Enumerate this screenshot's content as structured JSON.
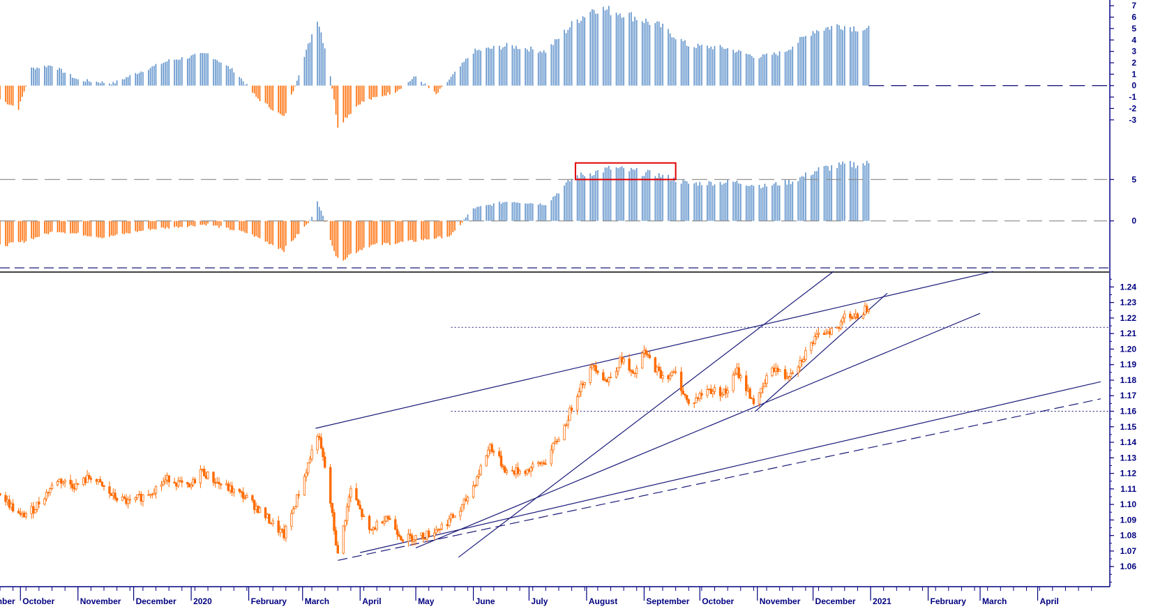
{
  "colors": {
    "price": "#ff6a00",
    "positive_bar": "#5b8fc9",
    "negative_bar": "#ff6a00",
    "trendline": "#1a1a7a",
    "axis": "#000080",
    "highlight_box": "#e00000",
    "reference": "#1a1a7a"
  },
  "chart_data": [
    {
      "type": "bar",
      "panel": "top-oscillator",
      "y_ticks": [
        "7",
        "6",
        "5",
        "4",
        "3",
        "2",
        "1",
        "0",
        "-1",
        "-2",
        "-3"
      ],
      "ylim": [
        -3.5,
        7.5
      ],
      "zero_line": 0,
      "trend_profile": [
        [
          "2019-09-20",
          -1.2
        ],
        [
          "2019-09-30",
          -2.0
        ],
        [
          "2019-10-07",
          1.5
        ],
        [
          "2019-10-18",
          1.8
        ],
        [
          "2019-11-01",
          0.5
        ],
        [
          "2019-11-20",
          0.2
        ],
        [
          "2019-12-01",
          1.0
        ],
        [
          "2019-12-20",
          2.2
        ],
        [
          "2020-01-10",
          2.8
        ],
        [
          "2020-01-25",
          1.2
        ],
        [
          "2020-02-05",
          -1.0
        ],
        [
          "2020-02-20",
          -2.8
        ],
        [
          "2020-03-01",
          2.0
        ],
        [
          "2020-03-09",
          6.0
        ],
        [
          "2020-03-15",
          2.0
        ],
        [
          "2020-03-20",
          -3.5
        ],
        [
          "2020-04-01",
          -1.5
        ],
        [
          "2020-04-20",
          -0.5
        ],
        [
          "2020-05-01",
          0.8
        ],
        [
          "2020-05-12",
          -0.8
        ],
        [
          "2020-06-01",
          3.0
        ],
        [
          "2020-06-20",
          3.5
        ],
        [
          "2020-07-10",
          3.0
        ],
        [
          "2020-07-25",
          5.5
        ],
        [
          "2020-08-05",
          6.8
        ],
        [
          "2020-08-20",
          6.4
        ],
        [
          "2020-09-10",
          5.2
        ],
        [
          "2020-09-25",
          3.5
        ],
        [
          "2020-10-15",
          3.3
        ],
        [
          "2020-11-01",
          2.5
        ],
        [
          "2020-11-15",
          2.9
        ],
        [
          "2020-12-01",
          4.8
        ],
        [
          "2020-12-15",
          5.3
        ],
        [
          "2020-12-31",
          4.9
        ]
      ]
    },
    {
      "type": "bar",
      "panel": "middle-oscillator",
      "y_ticks": [
        "5",
        "0"
      ],
      "ylim": [
        -5,
        10
      ],
      "reference_lines": [
        5,
        0
      ],
      "highlight_box": {
        "x_start": "2020-07-26",
        "x_end": "2020-09-18",
        "y_low": 5,
        "y_high": 7
      },
      "trend_profile": [
        [
          "2019-09-20",
          -3.0
        ],
        [
          "2019-10-01",
          -2.6
        ],
        [
          "2019-10-20",
          -1.2
        ],
        [
          "2019-11-15",
          -2.0
        ],
        [
          "2019-12-10",
          -1.0
        ],
        [
          "2020-01-10",
          -0.4
        ],
        [
          "2020-02-01",
          -1.5
        ],
        [
          "2020-02-20",
          -3.5
        ],
        [
          "2020-03-05",
          0.0
        ],
        [
          "2020-03-09",
          2.5
        ],
        [
          "2020-03-20",
          -4.8
        ],
        [
          "2020-04-05",
          -3.0
        ],
        [
          "2020-05-01",
          -2.4
        ],
        [
          "2020-05-20",
          -1.8
        ],
        [
          "2020-06-01",
          1.5
        ],
        [
          "2020-06-20",
          2.4
        ],
        [
          "2020-07-10",
          2.0
        ],
        [
          "2020-07-25",
          5.3
        ],
        [
          "2020-08-15",
          6.4
        ],
        [
          "2020-09-10",
          5.5
        ],
        [
          "2020-09-25",
          4.5
        ],
        [
          "2020-10-20",
          4.7
        ],
        [
          "2020-11-05",
          4.2
        ],
        [
          "2020-11-20",
          4.8
        ],
        [
          "2020-12-05",
          6.3
        ],
        [
          "2020-12-20",
          6.8
        ],
        [
          "2020-12-31",
          6.9
        ]
      ]
    },
    {
      "type": "line",
      "panel": "price",
      "y_ticks": [
        "1.24",
        "1.23",
        "1.22",
        "1.21",
        "1.20",
        "1.19",
        "1.18",
        "1.17",
        "1.16",
        "1.15",
        "1.14",
        "1.13",
        "1.12",
        "1.11",
        "1.10",
        "1.09",
        "1.08",
        "1.07",
        "1.06"
      ],
      "ylim": [
        1.052,
        1.246
      ],
      "xlim": [
        "2019-09-20",
        "2021-05-05"
      ],
      "x_labels": [
        "mber",
        "October",
        "November",
        "December",
        "2020",
        "February",
        "March",
        "April",
        "May",
        "June",
        "July",
        "August",
        "September",
        "October",
        "November",
        "December",
        "2021",
        "February",
        "March",
        "April"
      ],
      "x_label_dates": [
        "2019-09-16",
        "2019-10-01",
        "2019-11-01",
        "2019-12-01",
        "2020-01-01",
        "2020-02-01",
        "2020-03-01",
        "2020-04-01",
        "2020-05-01",
        "2020-06-01",
        "2020-07-01",
        "2020-08-01",
        "2020-09-01",
        "2020-10-01",
        "2020-11-01",
        "2020-12-01",
        "2021-01-01",
        "2021-02-01",
        "2021-03-01",
        "2021-04-01"
      ],
      "price_path": [
        [
          "2019-09-20",
          1.107
        ],
        [
          "2019-10-01",
          1.092
        ],
        [
          "2019-10-08",
          1.097
        ],
        [
          "2019-10-21",
          1.116
        ],
        [
          "2019-10-31",
          1.112
        ],
        [
          "2019-11-08",
          1.118
        ],
        [
          "2019-11-20",
          1.105
        ],
        [
          "2019-11-29",
          1.101
        ],
        [
          "2019-12-10",
          1.108
        ],
        [
          "2019-12-20",
          1.117
        ],
        [
          "2019-12-31",
          1.11
        ],
        [
          "2020-01-06",
          1.122
        ],
        [
          "2020-01-15",
          1.114
        ],
        [
          "2020-01-30",
          1.105
        ],
        [
          "2020-02-07",
          1.096
        ],
        [
          "2020-02-20",
          1.08
        ],
        [
          "2020-03-02",
          1.118
        ],
        [
          "2020-03-09",
          1.146
        ],
        [
          "2020-03-14",
          1.118
        ],
        [
          "2020-03-20",
          1.067
        ],
        [
          "2020-03-27",
          1.11
        ],
        [
          "2020-04-06",
          1.082
        ],
        [
          "2020-04-15",
          1.093
        ],
        [
          "2020-04-24",
          1.078
        ],
        [
          "2020-05-06",
          1.08
        ],
        [
          "2020-05-15",
          1.086
        ],
        [
          "2020-05-25",
          1.096
        ],
        [
          "2020-06-01",
          1.112
        ],
        [
          "2020-06-10",
          1.138
        ],
        [
          "2020-06-19",
          1.121
        ],
        [
          "2020-06-30",
          1.122
        ],
        [
          "2020-07-10",
          1.128
        ],
        [
          "2020-07-20",
          1.15
        ],
        [
          "2020-07-28",
          1.175
        ],
        [
          "2020-08-05",
          1.19
        ],
        [
          "2020-08-12",
          1.179
        ],
        [
          "2020-08-20",
          1.194
        ],
        [
          "2020-08-26",
          1.182
        ],
        [
          "2020-09-01",
          1.198
        ],
        [
          "2020-09-10",
          1.183
        ],
        [
          "2020-09-18",
          1.184
        ],
        [
          "2020-09-25",
          1.164
        ],
        [
          "2020-10-05",
          1.174
        ],
        [
          "2020-10-15",
          1.172
        ],
        [
          "2020-10-21",
          1.186
        ],
        [
          "2020-10-31",
          1.164
        ],
        [
          "2020-11-09",
          1.189
        ],
        [
          "2020-11-16",
          1.182
        ],
        [
          "2020-11-24",
          1.192
        ],
        [
          "2020-12-01",
          1.205
        ],
        [
          "2020-12-08",
          1.212
        ],
        [
          "2020-12-15",
          1.213
        ],
        [
          "2020-12-18",
          1.225
        ],
        [
          "2020-12-23",
          1.219
        ],
        [
          "2020-12-31",
          1.228
        ]
      ],
      "dotted_levels": [
        {
          "y": 1.214,
          "x_start": "2020-05-20"
        },
        {
          "y": 1.16,
          "x_start": "2020-05-20"
        }
      ],
      "trendlines": [
        {
          "from": [
            "2020-03-08",
            1.149
          ],
          "to": [
            "2021-03-08",
            1.25
          ],
          "style": "solid"
        },
        {
          "from": [
            "2020-05-24",
            1.066
          ],
          "to": [
            "2020-12-12",
            1.25
          ],
          "style": "solid"
        },
        {
          "from": [
            "2020-05-01",
            1.072
          ],
          "to": [
            "2021-03-01",
            1.223
          ],
          "style": "solid"
        },
        {
          "from": [
            "2020-04-01",
            1.069
          ],
          "to": [
            "2021-05-05",
            1.179
          ],
          "style": "solid"
        },
        {
          "from": [
            "2020-03-20",
            1.064
          ],
          "to": [
            "2021-05-05",
            1.168
          ],
          "style": "dashed"
        },
        {
          "from": [
            "2020-10-31",
            1.16
          ],
          "to": [
            "2021-01-10",
            1.236
          ],
          "style": "solid"
        }
      ]
    }
  ]
}
